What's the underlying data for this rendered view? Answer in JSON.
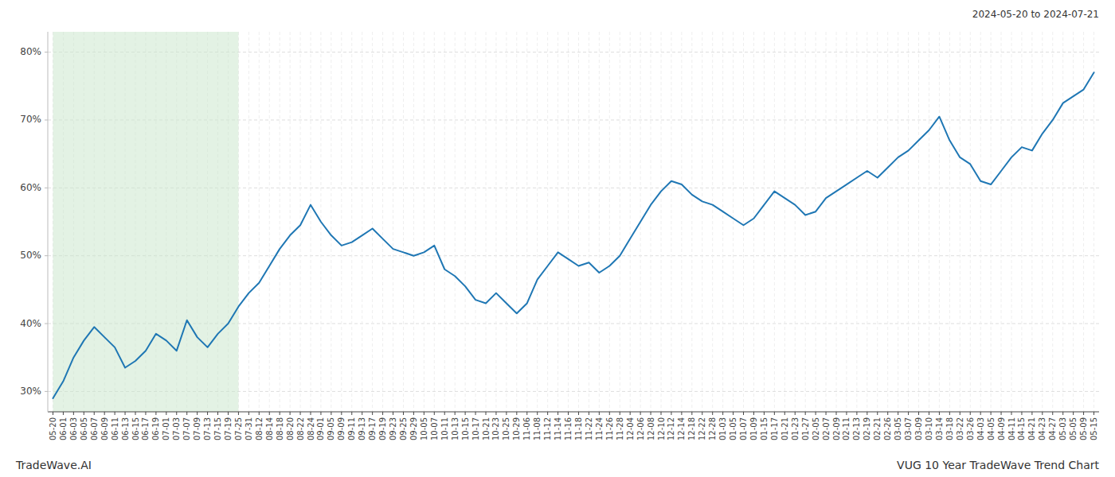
{
  "chart_data": {
    "type": "line",
    "title": "VUG 10 Year TradeWave Trend Chart",
    "subtitle": "2024-05-20 to 2024-07-21",
    "annotations": [
      "TradeWave.AI"
    ],
    "categories": [
      "05-20",
      "06-01",
      "06-03",
      "06-05",
      "06-07",
      "06-09",
      "06-11",
      "06-13",
      "06-15",
      "06-17",
      "06-19",
      "07-01",
      "07-03",
      "07-07",
      "07-09",
      "07-13",
      "07-15",
      "07-19",
      "07-25",
      "07-31",
      "08-12",
      "08-14",
      "08-18",
      "08-20",
      "08-22",
      "08-24",
      "09-01",
      "09-05",
      "09-09",
      "09-11",
      "09-13",
      "09-17",
      "09-19",
      "09-23",
      "09-25",
      "09-29",
      "10-05",
      "10-07",
      "10-11",
      "10-13",
      "10-15",
      "10-17",
      "10-21",
      "10-23",
      "10-25",
      "10-29",
      "11-06",
      "11-08",
      "11-12",
      "11-14",
      "11-16",
      "11-18",
      "11-22",
      "11-24",
      "11-26",
      "11-28",
      "12-04",
      "12-06",
      "12-08",
      "12-10",
      "12-12",
      "12-14",
      "12-18",
      "12-22",
      "12-28",
      "01-03",
      "01-05",
      "01-07",
      "01-09",
      "01-15",
      "01-17",
      "01-21",
      "01-23",
      "01-27",
      "02-05",
      "02-07",
      "02-09",
      "02-11",
      "02-13",
      "02-19",
      "02-21",
      "02-26",
      "03-05",
      "03-07",
      "03-09",
      "03-10",
      "03-14",
      "03-18",
      "03-22",
      "03-26",
      "04-03",
      "04-05",
      "04-09",
      "04-11",
      "04-15",
      "04-21",
      "04-23",
      "04-27",
      "05-03",
      "05-05",
      "05-09",
      "05-15"
    ],
    "values": [
      29.0,
      31.5,
      35.0,
      37.5,
      39.5,
      38.0,
      36.5,
      33.5,
      34.5,
      36.0,
      38.5,
      37.5,
      36.0,
      40.5,
      38.0,
      36.5,
      38.5,
      40.0,
      42.5,
      44.5,
      46.0,
      48.5,
      51.0,
      53.0,
      54.5,
      57.5,
      55.0,
      53.0,
      51.5,
      52.0,
      53.0,
      54.0,
      52.5,
      51.0,
      50.5,
      50.0,
      50.5,
      51.5,
      48.0,
      47.0,
      45.5,
      43.5,
      43.0,
      44.5,
      43.0,
      41.5,
      43.0,
      46.5,
      48.5,
      50.5,
      49.5,
      48.5,
      49.0,
      47.5,
      48.5,
      50.0,
      52.5,
      55.0,
      57.5,
      59.5,
      61.0,
      60.5,
      59.0,
      58.0,
      57.5,
      56.5,
      55.5,
      54.5,
      55.5,
      57.5,
      59.5,
      58.5,
      57.5,
      56.0,
      56.5,
      58.5,
      59.5,
      60.5,
      61.5,
      62.5,
      61.5,
      63.0,
      64.5,
      65.5,
      67.0,
      68.5,
      70.5,
      67.0,
      64.5,
      63.5,
      61.0,
      60.5,
      62.5,
      64.5,
      66.0,
      65.5,
      68.0,
      70.0,
      72.5,
      73.5,
      74.5,
      77.0
    ],
    "color": "#1f77b4",
    "ylim": [
      27,
      83
    ],
    "yticks": [
      {
        "value": 30,
        "label": "30%"
      },
      {
        "value": 40,
        "label": "40%"
      },
      {
        "value": 50,
        "label": "50%"
      },
      {
        "value": 60,
        "label": "60%"
      },
      {
        "value": 70,
        "label": "70%"
      },
      {
        "value": 80,
        "label": "80%"
      }
    ],
    "shaded_range": {
      "from": "05-20",
      "to": "07-25",
      "color": "#c8e6c9"
    },
    "grid": true
  }
}
